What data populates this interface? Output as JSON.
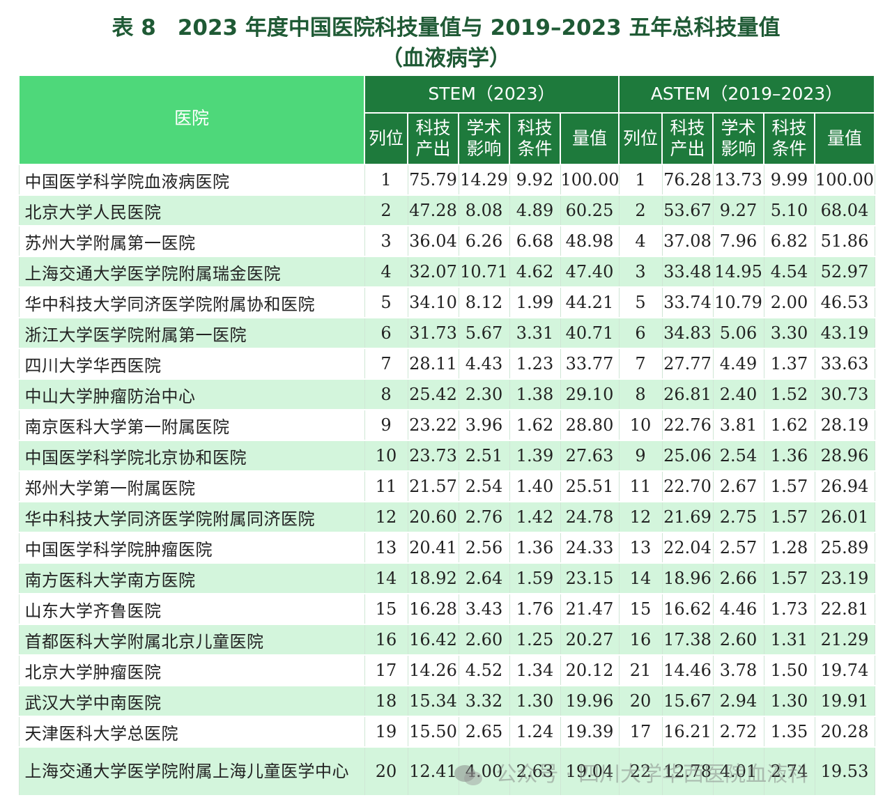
{
  "title": {
    "line1": "表 8　2023 年度中国医院科技量值与 2019–2023 五年总科技量值",
    "line2": "（血液病学）"
  },
  "header": {
    "hospital": "医院",
    "group1": "STEM（2023）",
    "group2": "ASTEM（2019–2023）",
    "cols": [
      "列位",
      "科技\n产出",
      "学术\n影响",
      "科技\n条件",
      "量值"
    ]
  },
  "rows": [
    {
      "name": "中国医学科学院血液病医院",
      "s": [
        "1",
        "75.79",
        "14.29",
        "9.92",
        "100.00"
      ],
      "a": [
        "1",
        "76.28",
        "13.73",
        "9.99",
        "100.00"
      ]
    },
    {
      "name": "北京大学人民医院",
      "s": [
        "2",
        "47.28",
        "8.08",
        "4.89",
        "60.25"
      ],
      "a": [
        "2",
        "53.67",
        "9.27",
        "5.10",
        "68.04"
      ]
    },
    {
      "name": "苏州大学附属第一医院",
      "s": [
        "3",
        "36.04",
        "6.26",
        "6.68",
        "48.98"
      ],
      "a": [
        "4",
        "37.08",
        "7.96",
        "6.82",
        "51.86"
      ]
    },
    {
      "name": "上海交通大学医学院附属瑞金医院",
      "s": [
        "4",
        "32.07",
        "10.71",
        "4.62",
        "47.40"
      ],
      "a": [
        "3",
        "33.48",
        "14.95",
        "4.54",
        "52.97"
      ]
    },
    {
      "name": "华中科技大学同济医学院附属协和医院",
      "s": [
        "5",
        "34.10",
        "8.12",
        "1.99",
        "44.21"
      ],
      "a": [
        "5",
        "33.74",
        "10.79",
        "2.00",
        "46.53"
      ]
    },
    {
      "name": "浙江大学医学院附属第一医院",
      "s": [
        "6",
        "31.73",
        "5.67",
        "3.31",
        "40.71"
      ],
      "a": [
        "6",
        "34.83",
        "5.06",
        "3.30",
        "43.19"
      ]
    },
    {
      "name": "四川大学华西医院",
      "s": [
        "7",
        "28.11",
        "4.43",
        "1.23",
        "33.77"
      ],
      "a": [
        "7",
        "27.77",
        "4.49",
        "1.37",
        "33.63"
      ]
    },
    {
      "name": "中山大学肿瘤防治中心",
      "s": [
        "8",
        "25.42",
        "2.30",
        "1.38",
        "29.10"
      ],
      "a": [
        "8",
        "26.81",
        "2.40",
        "1.52",
        "30.73"
      ]
    },
    {
      "name": "南京医科大学第一附属医院",
      "s": [
        "9",
        "23.22",
        "3.96",
        "1.62",
        "28.80"
      ],
      "a": [
        "10",
        "22.76",
        "3.81",
        "1.62",
        "28.19"
      ]
    },
    {
      "name": "中国医学科学院北京协和医院",
      "s": [
        "10",
        "23.73",
        "2.51",
        "1.39",
        "27.63"
      ],
      "a": [
        "9",
        "25.06",
        "2.54",
        "1.36",
        "28.96"
      ]
    },
    {
      "name": "郑州大学第一附属医院",
      "s": [
        "11",
        "21.57",
        "2.54",
        "1.40",
        "25.51"
      ],
      "a": [
        "11",
        "22.70",
        "2.67",
        "1.57",
        "26.94"
      ]
    },
    {
      "name": "华中科技大学同济医学院附属同济医院",
      "s": [
        "12",
        "20.60",
        "2.76",
        "1.42",
        "24.78"
      ],
      "a": [
        "12",
        "21.69",
        "2.75",
        "1.57",
        "26.01"
      ]
    },
    {
      "name": "中国医学科学院肿瘤医院",
      "s": [
        "13",
        "20.41",
        "2.56",
        "1.36",
        "24.33"
      ],
      "a": [
        "13",
        "22.04",
        "2.57",
        "1.28",
        "25.89"
      ]
    },
    {
      "name": "南方医科大学南方医院",
      "s": [
        "14",
        "18.92",
        "2.64",
        "1.59",
        "23.15"
      ],
      "a": [
        "14",
        "18.96",
        "2.66",
        "1.57",
        "23.19"
      ]
    },
    {
      "name": "山东大学齐鲁医院",
      "s": [
        "15",
        "16.28",
        "3.43",
        "1.76",
        "21.47"
      ],
      "a": [
        "15",
        "16.62",
        "4.46",
        "1.73",
        "22.81"
      ]
    },
    {
      "name": "首都医科大学附属北京儿童医院",
      "s": [
        "16",
        "16.42",
        "2.60",
        "1.25",
        "20.27"
      ],
      "a": [
        "16",
        "17.38",
        "2.60",
        "1.31",
        "21.29"
      ]
    },
    {
      "name": "北京大学肿瘤医院",
      "s": [
        "17",
        "14.26",
        "4.52",
        "1.34",
        "20.12"
      ],
      "a": [
        "21",
        "14.46",
        "3.78",
        "1.50",
        "19.74"
      ]
    },
    {
      "name": "武汉大学中南医院",
      "s": [
        "18",
        "15.34",
        "3.32",
        "1.30",
        "19.96"
      ],
      "a": [
        "20",
        "15.67",
        "2.94",
        "1.30",
        "19.91"
      ]
    },
    {
      "name": "天津医科大学总医院",
      "s": [
        "19",
        "15.50",
        "2.65",
        "1.24",
        "19.39"
      ],
      "a": [
        "17",
        "16.21",
        "2.72",
        "1.35",
        "20.28"
      ]
    },
    {
      "name": "上海交通大学医学院附属上海儿童医学中心",
      "s": [
        "20",
        "12.41",
        "4.00",
        "2.63",
        "19.04"
      ],
      "a": [
        "22",
        "12.78",
        "4.01",
        "2.74",
        "19.53"
      ]
    }
  ],
  "watermark": "公众号 · 四川大学华西医院血液科",
  "colors": {
    "title": "#1f5a35",
    "header_dark": "#1e7a3c",
    "header_light": "#4ed87a",
    "row_alt": "#d3f5dc"
  }
}
